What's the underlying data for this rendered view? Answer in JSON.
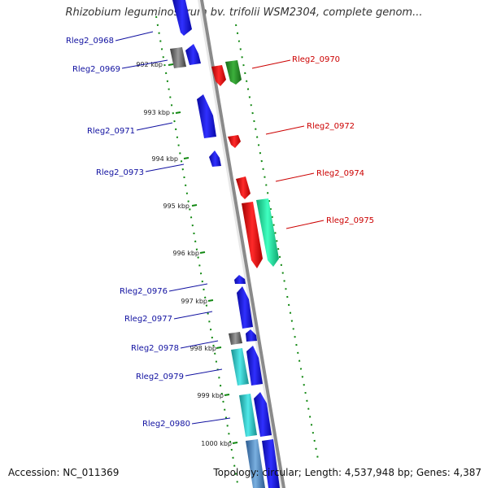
{
  "title": "Rhizobium leguminosarum bv. trifolii WSM2304, complete genom...",
  "footer": {
    "accession": "Accession: NC_011369",
    "summary": "Topology: circular; Length: 4,537,948 bp; Genes: 4,387"
  },
  "colors": {
    "backbone": "#8a8a8a",
    "forward_label": "#1010a0",
    "reverse_label": "#cc0000",
    "tick": "#118811",
    "blue_gene": "#1010e0",
    "red_gene": "#ee1111",
    "green_gene": "#2a9a2a",
    "aqua_gene": "#22e0a0",
    "cyan_gene": "#30c8c8",
    "gray_gene": "#707070",
    "steel_gene": "#4a86c0"
  },
  "scale_labels": [
    "992 kbp",
    "993 kbp",
    "994 kbp",
    "995 kbp",
    "996 kbp",
    "997 kbp",
    "998 kbp",
    "999 kbp",
    "1000 kbp"
  ],
  "forward_genes": [
    "Rleg2_0968",
    "Rleg2_0969",
    "Rleg2_0971",
    "Rleg2_0973",
    "Rleg2_0976",
    "Rleg2_0977",
    "Rleg2_0978",
    "Rleg2_0979",
    "Rleg2_0980"
  ],
  "reverse_genes": [
    "Rleg2_0970",
    "Rleg2_0972",
    "Rleg2_0974",
    "Rleg2_0975"
  ]
}
